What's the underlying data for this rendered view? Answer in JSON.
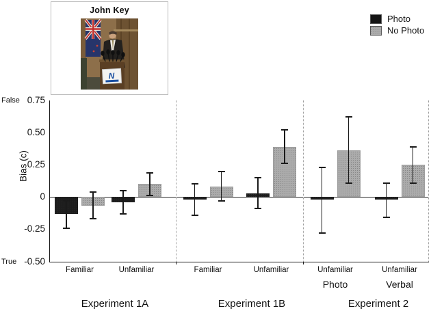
{
  "figure": {
    "inset": {
      "title": "John Key"
    }
  },
  "chart_data": {
    "type": "bar",
    "title": "",
    "ylabel": "Bias (c)",
    "xlabel": "",
    "grid": false,
    "legend_position": "top-right",
    "y_axis": {
      "ticks": [
        "0.75",
        "0.50",
        "0.25",
        "0",
        "-0.25",
        "-0.50"
      ],
      "tick_values": [
        0.75,
        0.5,
        0.25,
        0,
        -0.25,
        -0.5
      ],
      "top_anchor": "False",
      "bottom_anchor": "True",
      "ylim": [
        -0.5,
        0.75
      ]
    },
    "categories": [
      "Familiar",
      "Unfamiliar",
      "Familiar",
      "Unfamiliar",
      "Unfamiliar",
      "Unfamiliar"
    ],
    "sub_labels": [
      "",
      "",
      "",
      "",
      "Photo",
      "Verbal"
    ],
    "experiments": [
      {
        "label": "Experiment 1A",
        "group_indices": [
          0,
          1
        ]
      },
      {
        "label": "Experiment 1B",
        "group_indices": [
          2,
          3
        ]
      },
      {
        "label": "Experiment 2",
        "group_indices": [
          4,
          5
        ]
      }
    ],
    "series": [
      {
        "name": "Photo",
        "color": "#141414",
        "values": [
          -0.13,
          -0.04,
          -0.02,
          0.03,
          -0.02,
          -0.02
        ],
        "ci_low": [
          -0.24,
          -0.13,
          -0.14,
          -0.09,
          -0.28,
          -0.16
        ],
        "ci_high": [
          -0.03,
          0.05,
          0.1,
          0.15,
          0.23,
          0.11
        ]
      },
      {
        "name": "No Photo",
        "color": "#ababab",
        "values": [
          -0.07,
          0.1,
          0.08,
          0.39,
          0.36,
          0.25
        ],
        "ci_low": [
          -0.17,
          0.01,
          -0.03,
          0.26,
          0.11,
          0.11
        ],
        "ci_high": [
          0.04,
          0.19,
          0.2,
          0.52,
          0.62,
          0.39
        ]
      }
    ]
  }
}
